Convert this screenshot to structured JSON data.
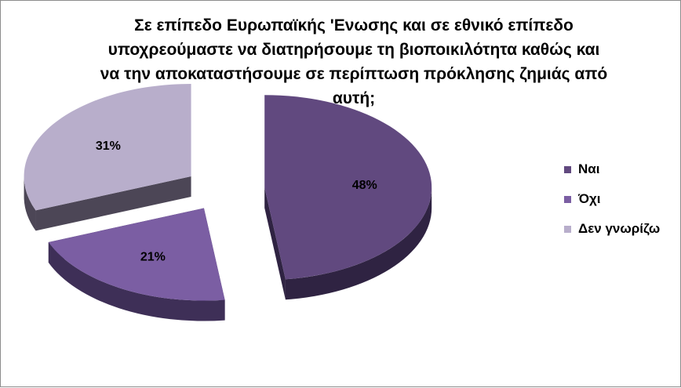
{
  "title_lines": [
    "Σε επίπεδο  Ευρωπαϊκής 'Ενωσης και σε εθνικό επίπεδο",
    "υποχρεούμαστε να διατηρήσουμε τη βιοποικιλότητα καθώς και",
    "να την αποκαταστήσουμε σε περίπτωση πρόκλησης ζημιάς από",
    "αυτή;"
  ],
  "chart_data": {
    "type": "pie",
    "style": "3d-exploded",
    "title": "Σε επίπεδο  Ευρωπαϊκής 'Ενωσης και σε εθνικό επίπεδο υποχρεούμαστε να διατηρήσουμε τη βιοποικιλότητα καθώς και να την αποκαταστήσουμε σε περίπτωση πρόκλησης ζημιάς από αυτή;",
    "categories": [
      "Ναι",
      "Όχι",
      "Δεν γνωρίζω"
    ],
    "values": [
      48,
      21,
      31
    ],
    "labels": [
      "48%",
      "21%",
      "31%"
    ],
    "colors": [
      "#61497f",
      "#7b5ea3",
      "#b8aecb"
    ],
    "legend_position": "right"
  }
}
